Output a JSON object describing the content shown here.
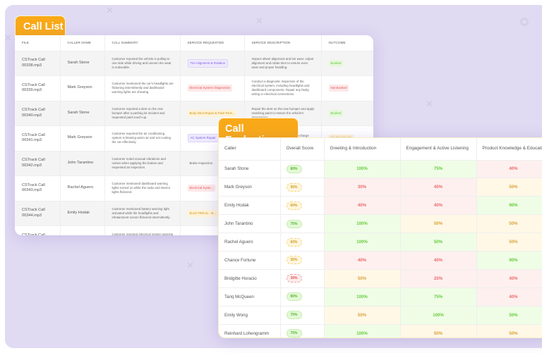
{
  "call_list": {
    "title": "Call List",
    "columns": [
      "FILE",
      "CALLER NAME",
      "CALL SUMMARY",
      "SERVICE REQUESTED",
      "SERVICE DESCRIPTION",
      "OUTCOME"
    ],
    "rows": [
      {
        "file": "CSTrack Call 00338.mp3",
        "caller": "Sarah Stone",
        "summary": "Customer reported the vehicle is pulling to one side while driving and uneven tire wear is noticeable.",
        "service": "Tire Alignment & Rotation",
        "service_color": "purple",
        "description": "Inspect wheel alignment and tire wear. Adjust alignment and rotate tires to ensure even wear and proper handling.",
        "outcome": "Booked",
        "outcome_color": "green"
      },
      {
        "file": "CSTrack Call 00339.mp3",
        "caller": "Mark Greyson",
        "summary": "Customer mentioned the car's headlights are flickering intermittently and dashboard warning lights are showing.",
        "service": "Electrical System Diagnostics",
        "service_color": "red",
        "description": "Conduct a diagnostic inspection of the electrical system, including headlights and dashboard components. Repair any faulty wiring or electrical connections.",
        "outcome": "Not Booked",
        "outcome_color": "red"
      },
      {
        "file": "CSTrack Call 00340.mp3",
        "caller": "Sarah Stone",
        "summary": "Customer reported a dent on the rear bumper after a parking lot incident and requested paint touch-up.",
        "service": "Body Dent Repair & Paint Rest...",
        "service_color": "yellow",
        "description": "Repair the dent on the rear bumper and apply matching paint to restore the vehicle's appearance.",
        "outcome": "Booked",
        "outcome_color": "green"
      },
      {
        "file": "CSTrack Call 00341.mp3",
        "caller": "Mark Greyson",
        "summary": "Customer reported the air conditioning system is blowing warm air and not cooling the car effectively.",
        "service": "AC System Repair",
        "service_color": "purple",
        "description": "Inspect the AC system for leaks, recharge refrigerant, and replace faulty components.",
        "outcome": "No Opportunity",
        "outcome_color": "yellow"
      },
      {
        "file": "CSTrack Call 00342.mp3",
        "caller": "John Tarantino",
        "summary": "Customer noted unusual vibrations and noises when applying the brakes and requested an inspection.",
        "service": "Brake Inspection",
        "service_color": "plain",
        "description": "",
        "outcome": "",
        "outcome_color": "plain"
      },
      {
        "file": "CSTrack Call 00343.mp3",
        "caller": "Rachel Aguero",
        "summary": "Customer mentioned dashboard warning lights turned on while the radio and interior lights flickered.",
        "service": "Electrical Syste...",
        "service_color": "red",
        "description": "",
        "outcome": "",
        "outcome_color": "plain"
      },
      {
        "file": "CSTrack Call 00344.mp3",
        "caller": "Emily Hodak",
        "summary": "Customer mentioned battery warning light activated while the headlights and infotainment screen flickered intermittently.",
        "service": "ELECTRICAL - B...",
        "service_color": "yellow",
        "description": "",
        "outcome": "",
        "outcome_color": "plain"
      },
      {
        "file": "CSTrack Call 00345.mp3",
        "caller": "John Tarantino",
        "summary": "Customer reported electrical system warning appeared while the radio and dashboard lights flickered.",
        "service": "ELECTRICAL - D...",
        "service_color": "red",
        "description": "",
        "outcome": "",
        "outcome_color": "plain"
      }
    ]
  },
  "call_evaluation": {
    "title": "Call Evaluation",
    "columns": [
      "Caller",
      "Overall Score",
      "Greeting & Introduction",
      "Engagement & Active Listening",
      "Product Knowledge & Education"
    ],
    "rows": [
      {
        "caller": "Sarah Stone",
        "overall": "80%",
        "overall_color": "green",
        "greeting": "100%",
        "greeting_color": "green",
        "engagement": "75%",
        "engagement_color": "green",
        "knowledge": "40%",
        "knowledge_color": "red"
      },
      {
        "caller": "Mark Greyson",
        "overall": "55%",
        "overall_color": "yellow",
        "greeting": "30%",
        "greeting_color": "red",
        "engagement": "40%",
        "engagement_color": "red",
        "knowledge": "50%",
        "knowledge_color": "yellow"
      },
      {
        "caller": "Emily Hodak",
        "overall": "60%",
        "overall_color": "yellow",
        "greeting": "40%",
        "greeting_color": "red",
        "engagement": "40%",
        "engagement_color": "red",
        "knowledge": "90%",
        "knowledge_color": "green"
      },
      {
        "caller": "John Tarantino",
        "overall": "75%",
        "overall_color": "green",
        "greeting": "100%",
        "greeting_color": "green",
        "engagement": "50%",
        "engagement_color": "yellow",
        "knowledge": "50%",
        "knowledge_color": "yellow"
      },
      {
        "caller": "Rachel Aguero",
        "overall": "60%",
        "overall_color": "yellow",
        "greeting": "100%",
        "greeting_color": "green",
        "engagement": "50%",
        "engagement_color": "green",
        "knowledge": "50%",
        "knowledge_color": "yellow"
      },
      {
        "caller": "Chance Fortune",
        "overall": "55%",
        "overall_color": "yellow",
        "greeting": "40%",
        "greeting_color": "red",
        "engagement": "40%",
        "engagement_color": "red",
        "knowledge": "90%",
        "knowledge_color": "green"
      },
      {
        "caller": "Bridgitte Horacio",
        "overall": "30%",
        "overall_color": "red",
        "greeting": "50%",
        "greeting_color": "yellow",
        "engagement": "20%",
        "engagement_color": "red",
        "knowledge": "40%",
        "knowledge_color": "red"
      },
      {
        "caller": "Tariq McQueen",
        "overall": "80%",
        "overall_color": "green",
        "greeting": "100%",
        "greeting_color": "green",
        "engagement": "75%",
        "engagement_color": "green",
        "knowledge": "40%",
        "knowledge_color": "red"
      },
      {
        "caller": "Emily Wong",
        "overall": "75%",
        "overall_color": "green",
        "greeting": "50%",
        "greeting_color": "yellow",
        "engagement": "100%",
        "engagement_color": "green",
        "knowledge": "50%",
        "knowledge_color": "green"
      },
      {
        "caller": "Reinhard Lohengramm",
        "overall": "75%",
        "overall_color": "green",
        "greeting": "100%",
        "greeting_color": "green",
        "engagement": "50%",
        "engagement_color": "yellow",
        "knowledge": "50%",
        "knowledge_color": "yellow"
      }
    ]
  },
  "colors": {
    "accent": "#f9a918",
    "background": "#e0daf3",
    "good": "#66cc3d",
    "mid": "#d9a23a",
    "bad": "#ec6a6a"
  }
}
